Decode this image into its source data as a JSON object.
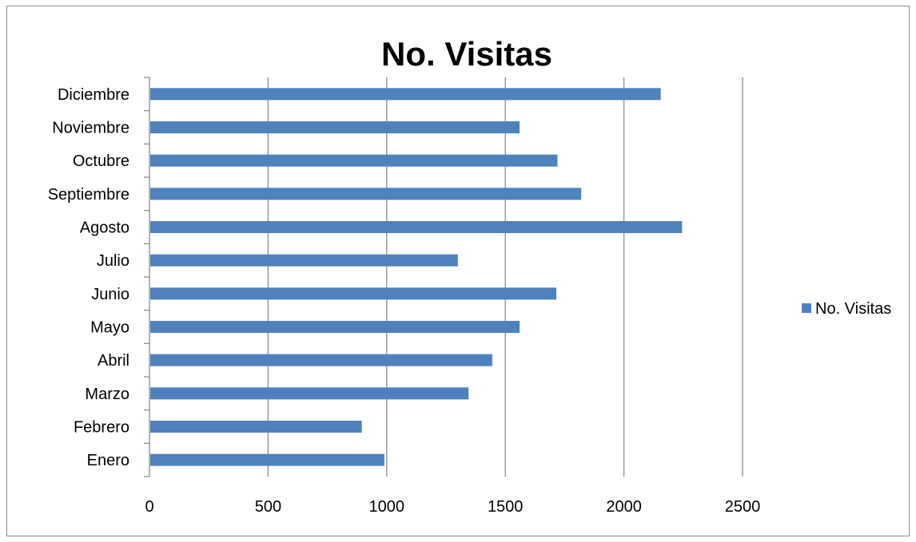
{
  "chart_data": {
    "type": "bar",
    "orientation": "horizontal",
    "title": "No. Visitas",
    "xlabel": "",
    "ylabel": "",
    "categories": [
      "Enero",
      "Febrero",
      "Marzo",
      "Abril",
      "Mayo",
      "Junio",
      "Julio",
      "Agosto",
      "Septiembre",
      "Octubre",
      "Noviembre",
      "Diciembre"
    ],
    "series": [
      {
        "name": "No. Visitas",
        "color": "#4f81bd",
        "values": [
          990,
          895,
          1345,
          1445,
          1560,
          1715,
          1300,
          2245,
          1820,
          1720,
          1560,
          2155
        ]
      }
    ],
    "xlim": [
      0,
      2500
    ],
    "xticks": [
      "0",
      "500",
      "1000",
      "1500",
      "2000",
      "2500"
    ],
    "grid": "vertical",
    "legend": "right"
  }
}
